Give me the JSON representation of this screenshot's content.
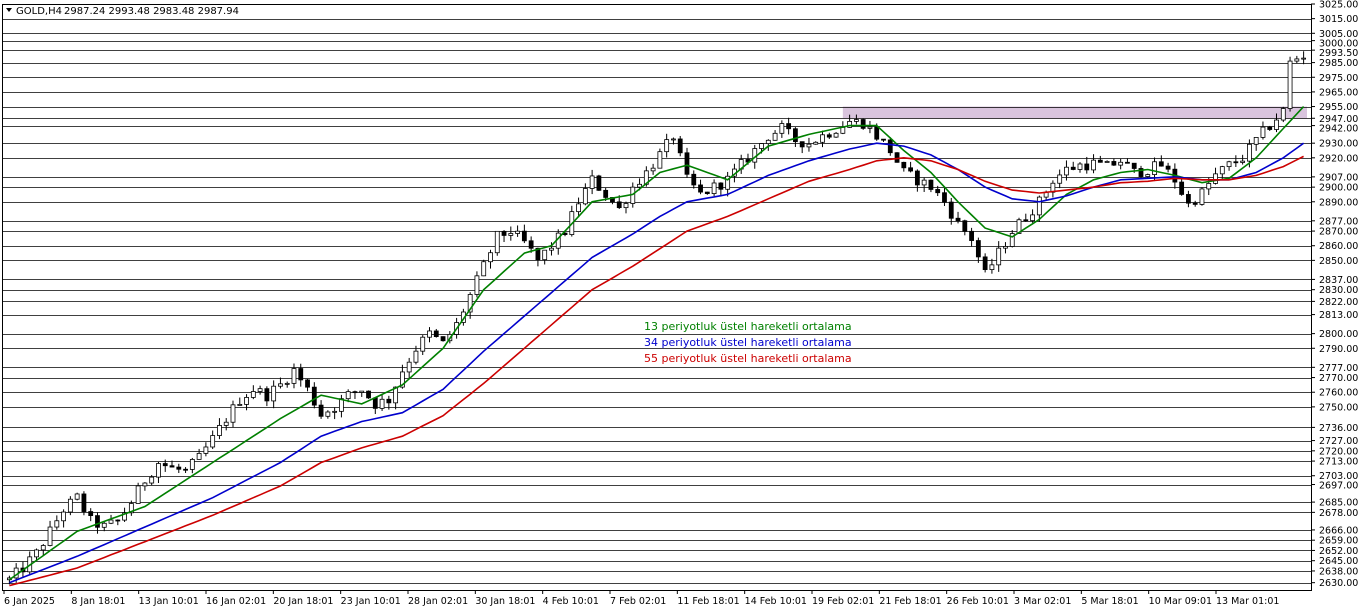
{
  "header": {
    "symbol": "GOLD,H4",
    "ohlc": "2987.24 2993.48 2983.48 2987.94"
  },
  "chart_data": {
    "type": "line",
    "ylim": [
      2625,
      3025
    ],
    "y_ticks": [
      3025,
      3015,
      3005,
      3000,
      2993.5,
      2985,
      2975,
      2965,
      2955,
      2947,
      2942,
      2930,
      2920,
      2907,
      2900,
      2890,
      2877,
      2870,
      2860,
      2850,
      2837,
      2830,
      2822,
      2813,
      2800,
      2790,
      2777,
      2770,
      2760,
      2750,
      2736,
      2727,
      2720,
      2713,
      2703,
      2697,
      2685,
      2678,
      2666,
      2659,
      2652,
      2645,
      2638,
      2630
    ],
    "y_tick_labels": [
      "3025.00",
      "3015.00",
      "3005.00",
      "3000.00",
      "2993.50",
      "2985.00",
      "2975.00",
      "2965.00",
      "2955.00",
      "2947.00",
      "2942.00",
      "2930.00",
      "2920.00",
      "2907.00",
      "2900.00",
      "2890.00",
      "2877.00",
      "2870.00",
      "2860.00",
      "2850.00",
      "2837.00",
      "2830.00",
      "2822.00",
      "2813.00",
      "2800.00",
      "2790.00",
      "2777.00",
      "2770.00",
      "2760.00",
      "2750.00",
      "2736.00",
      "2727.00",
      "2720.00",
      "2713.00",
      "2703.00",
      "2697.00",
      "2685.00",
      "2678.00",
      "2666.00",
      "2659.00",
      "2652.00",
      "2645.00",
      "2638.00",
      "2630.00"
    ],
    "x_labels": [
      "6 Jan 2025",
      "8 Jan 18:01",
      "13 Jan 10:01",
      "16 Jan 02:01",
      "20 Jan 18:01",
      "23 Jan 10:01",
      "28 Jan 02:01",
      "30 Jan 18:01",
      "4 Feb 10:01",
      "7 Feb 02:01",
      "11 Feb 18:01",
      "14 Feb 10:01",
      "19 Feb 02:01",
      "21 Feb 18:01",
      "26 Feb 10:01",
      "3 Mar 02:01",
      "5 Mar 18:01",
      "10 Mar 09:01",
      "13 Mar 01:01"
    ],
    "price_path": [
      [
        0,
        2632
      ],
      [
        2,
        2640
      ],
      [
        4,
        2650
      ],
      [
        6,
        2665
      ],
      [
        8,
        2680
      ],
      [
        10,
        2688
      ],
      [
        12,
        2672
      ],
      [
        14,
        2668
      ],
      [
        16,
        2672
      ],
      [
        18,
        2685
      ],
      [
        20,
        2700
      ],
      [
        22,
        2712
      ],
      [
        24,
        2708
      ],
      [
        26,
        2706
      ],
      [
        28,
        2715
      ],
      [
        30,
        2728
      ],
      [
        32,
        2742
      ],
      [
        34,
        2755
      ],
      [
        36,
        2762
      ],
      [
        38,
        2758
      ],
      [
        40,
        2765
      ],
      [
        42,
        2775
      ],
      [
        44,
        2762
      ],
      [
        46,
        2745
      ],
      [
        48,
        2750
      ],
      [
        50,
        2758
      ],
      [
        52,
        2762
      ],
      [
        54,
        2752
      ],
      [
        56,
        2755
      ],
      [
        58,
        2775
      ],
      [
        60,
        2790
      ],
      [
        62,
        2800
      ],
      [
        64,
        2793
      ],
      [
        66,
        2806
      ],
      [
        68,
        2826
      ],
      [
        70,
        2846
      ],
      [
        72,
        2866
      ],
      [
        74,
        2870
      ],
      [
        76,
        2862
      ],
      [
        78,
        2850
      ],
      [
        80,
        2860
      ],
      [
        82,
        2870
      ],
      [
        84,
        2890
      ],
      [
        86,
        2905
      ],
      [
        88,
        2895
      ],
      [
        90,
        2885
      ],
      [
        92,
        2900
      ],
      [
        94,
        2910
      ],
      [
        96,
        2922
      ],
      [
        98,
        2935
      ],
      [
        100,
        2905
      ],
      [
        102,
        2895
      ],
      [
        104,
        2900
      ],
      [
        106,
        2905
      ],
      [
        108,
        2915
      ],
      [
        110,
        2925
      ],
      [
        112,
        2935
      ],
      [
        114,
        2940
      ],
      [
        116,
        2932
      ],
      [
        118,
        2930
      ],
      [
        120,
        2935
      ],
      [
        122,
        2940
      ],
      [
        124,
        2945
      ],
      [
        126,
        2944
      ],
      [
        128,
        2935
      ],
      [
        130,
        2925
      ],
      [
        132,
        2910
      ],
      [
        134,
        2905
      ],
      [
        136,
        2900
      ],
      [
        138,
        2890
      ],
      [
        140,
        2875
      ],
      [
        142,
        2865
      ],
      [
        144,
        2840
      ],
      [
        146,
        2855
      ],
      [
        148,
        2870
      ],
      [
        150,
        2880
      ],
      [
        152,
        2890
      ],
      [
        154,
        2905
      ],
      [
        156,
        2912
      ],
      [
        158,
        2915
      ],
      [
        160,
        2916
      ],
      [
        162,
        2914
      ],
      [
        164,
        2918
      ],
      [
        166,
        2910
      ],
      [
        168,
        2912
      ],
      [
        170,
        2915
      ],
      [
        172,
        2905
      ],
      [
        174,
        2888
      ],
      [
        176,
        2896
      ],
      [
        178,
        2908
      ],
      [
        180,
        2915
      ],
      [
        182,
        2920
      ],
      [
        184,
        2932
      ],
      [
        186,
        2942
      ],
      [
        188,
        2952
      ],
      [
        189,
        2985
      ],
      [
        190,
        2988
      ],
      [
        191,
        2990
      ]
    ],
    "series": [
      {
        "name": "13 periyotluk üstel hareketli ortalama",
        "color": "#008000",
        "values": [
          [
            0,
            2632
          ],
          [
            10,
            2665
          ],
          [
            20,
            2682
          ],
          [
            30,
            2712
          ],
          [
            40,
            2742
          ],
          [
            46,
            2758
          ],
          [
            52,
            2752
          ],
          [
            58,
            2765
          ],
          [
            64,
            2790
          ],
          [
            70,
            2830
          ],
          [
            76,
            2855
          ],
          [
            80,
            2860
          ],
          [
            86,
            2890
          ],
          [
            92,
            2895
          ],
          [
            96,
            2910
          ],
          [
            100,
            2915
          ],
          [
            106,
            2905
          ],
          [
            112,
            2928
          ],
          [
            118,
            2936
          ],
          [
            124,
            2942
          ],
          [
            128,
            2942
          ],
          [
            132,
            2925
          ],
          [
            136,
            2910
          ],
          [
            140,
            2890
          ],
          [
            144,
            2872
          ],
          [
            148,
            2866
          ],
          [
            152,
            2878
          ],
          [
            156,
            2895
          ],
          [
            160,
            2905
          ],
          [
            164,
            2910
          ],
          [
            168,
            2912
          ],
          [
            172,
            2908
          ],
          [
            176,
            2903
          ],
          [
            180,
            2906
          ],
          [
            184,
            2920
          ],
          [
            188,
            2940
          ],
          [
            191,
            2955
          ]
        ]
      },
      {
        "name": "34 periyotluk üstel hareketli ortalama",
        "color": "#0000cc",
        "values": [
          [
            0,
            2630
          ],
          [
            10,
            2648
          ],
          [
            20,
            2668
          ],
          [
            30,
            2688
          ],
          [
            40,
            2712
          ],
          [
            46,
            2730
          ],
          [
            52,
            2740
          ],
          [
            58,
            2746
          ],
          [
            64,
            2762
          ],
          [
            70,
            2788
          ],
          [
            76,
            2812
          ],
          [
            80,
            2828
          ],
          [
            86,
            2852
          ],
          [
            92,
            2868
          ],
          [
            96,
            2880
          ],
          [
            100,
            2890
          ],
          [
            106,
            2895
          ],
          [
            112,
            2908
          ],
          [
            118,
            2918
          ],
          [
            124,
            2926
          ],
          [
            128,
            2930
          ],
          [
            132,
            2928
          ],
          [
            136,
            2922
          ],
          [
            140,
            2912
          ],
          [
            144,
            2900
          ],
          [
            148,
            2892
          ],
          [
            152,
            2890
          ],
          [
            156,
            2894
          ],
          [
            160,
            2900
          ],
          [
            164,
            2905
          ],
          [
            168,
            2906
          ],
          [
            172,
            2907
          ],
          [
            176,
            2905
          ],
          [
            180,
            2905
          ],
          [
            184,
            2910
          ],
          [
            188,
            2920
          ],
          [
            191,
            2930
          ]
        ]
      },
      {
        "name": "55 periyotluk üstel hareketli ortalama",
        "color": "#cc0000",
        "values": [
          [
            0,
            2628
          ],
          [
            10,
            2640
          ],
          [
            20,
            2658
          ],
          [
            30,
            2676
          ],
          [
            40,
            2696
          ],
          [
            46,
            2712
          ],
          [
            52,
            2722
          ],
          [
            58,
            2730
          ],
          [
            64,
            2744
          ],
          [
            70,
            2766
          ],
          [
            76,
            2790
          ],
          [
            80,
            2806
          ],
          [
            86,
            2830
          ],
          [
            92,
            2846
          ],
          [
            96,
            2858
          ],
          [
            100,
            2870
          ],
          [
            106,
            2880
          ],
          [
            112,
            2892
          ],
          [
            118,
            2904
          ],
          [
            124,
            2912
          ],
          [
            128,
            2918
          ],
          [
            132,
            2920
          ],
          [
            136,
            2918
          ],
          [
            140,
            2912
          ],
          [
            144,
            2904
          ],
          [
            148,
            2898
          ],
          [
            152,
            2896
          ],
          [
            156,
            2898
          ],
          [
            160,
            2900
          ],
          [
            164,
            2903
          ],
          [
            168,
            2904
          ],
          [
            172,
            2906
          ],
          [
            176,
            2905
          ],
          [
            180,
            2905
          ],
          [
            184,
            2908
          ],
          [
            188,
            2914
          ],
          [
            191,
            2921
          ]
        ]
      }
    ],
    "zone": {
      "y_bottom": 2947,
      "y_top": 2955,
      "x_start": 123,
      "x_end": 191.5,
      "color": "#d9c4dd"
    }
  },
  "legend": [
    {
      "label": "13 periyotluk üstel hareketli ortalama",
      "color": "#008000"
    },
    {
      "label": "34 periyotluk üstel hareketli ortalama",
      "color": "#0000cc"
    },
    {
      "label": "55 periyotluk üstel hareketli ortalama",
      "color": "#cc0000"
    }
  ],
  "colors": {
    "background": "#ffffff",
    "grid": "#000000",
    "price": "#000000"
  }
}
